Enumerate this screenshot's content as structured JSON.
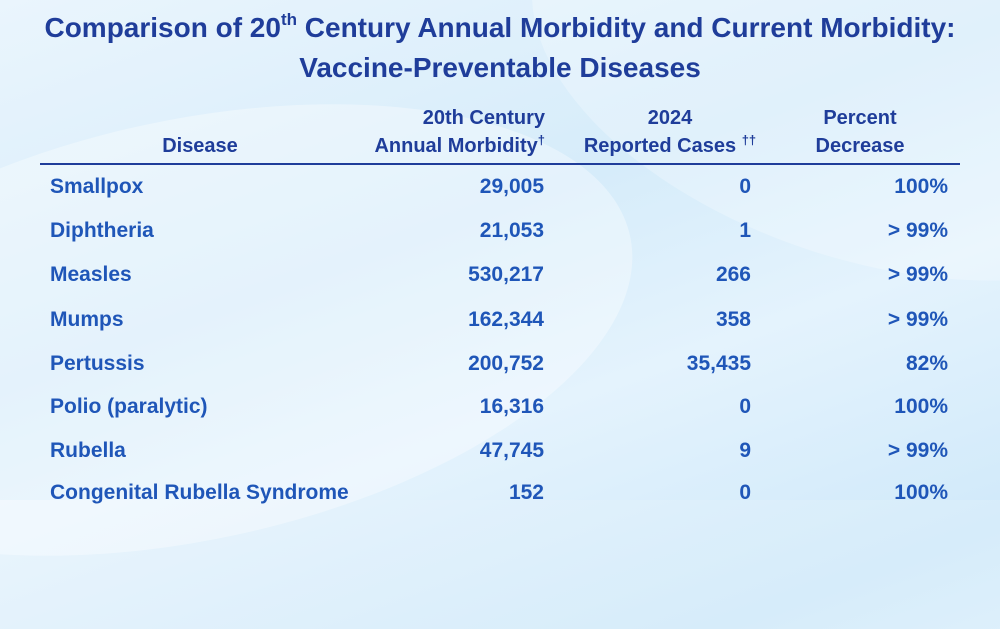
{
  "title": {
    "line1_a": "Comparison of 20",
    "line1_sup": "th",
    "line1_b": " Century Annual Morbidity and Current Morbidity:",
    "line2": "Vaccine-Preventable Diseases"
  },
  "headers": {
    "disease": "Disease",
    "morbidity_line1": "20th Century",
    "morbidity_line2": "Annual Morbidity",
    "morbidity_mark": "†",
    "reported_line1": "2024",
    "reported_line2": "Reported Cases",
    "reported_mark": "††",
    "decrease_line1": "Percent",
    "decrease_line2": "Decrease"
  },
  "rows": [
    {
      "disease": "Smallpox",
      "morbidity": "29,005",
      "reported": "0",
      "decrease": "100%"
    },
    {
      "disease": "Diphtheria",
      "morbidity": "21,053",
      "reported": "1",
      "decrease": "> 99%"
    },
    {
      "disease": "Measles",
      "morbidity": "530,217",
      "reported": "266",
      "decrease": "> 99%"
    },
    {
      "disease": "Mumps",
      "morbidity": "162,344",
      "reported": "358",
      "decrease": "> 99%"
    },
    {
      "disease": "Pertussis",
      "morbidity": "200,752",
      "reported": "35,435",
      "decrease": "82%"
    },
    {
      "disease": "Polio (paralytic)",
      "morbidity": "16,316",
      "reported": "0",
      "decrease": "100%"
    },
    {
      "disease": "Rubella",
      "morbidity": "47,745",
      "reported": "9",
      "decrease": "> 99%"
    },
    {
      "disease": "Congenital Rubella Syndrome",
      "morbidity": "152",
      "reported": "0",
      "decrease": "100%"
    }
  ],
  "colors": {
    "title": "#1f3d9a",
    "row_text": "#1f56b8",
    "rule": "#1f3d9a"
  }
}
